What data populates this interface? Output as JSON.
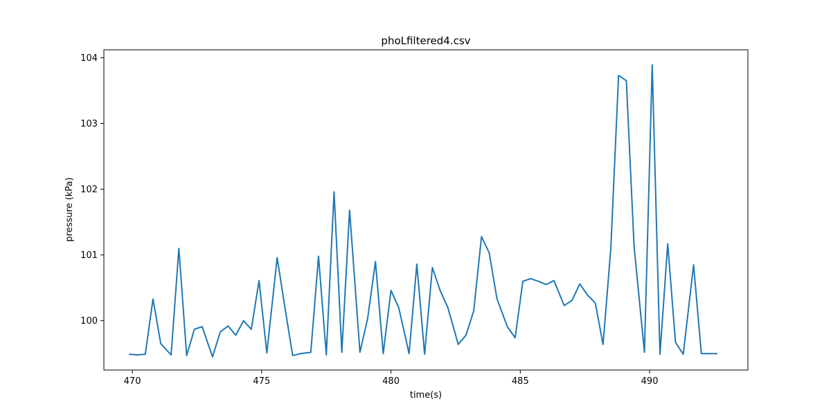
{
  "chart_data": {
    "type": "line",
    "title": "phoLfiltered4.csv",
    "xlabel": "time(s)",
    "ylabel": "pressure (kPa)",
    "xlim": [
      468.9,
      493.8
    ],
    "ylim": [
      99.25,
      104.12
    ],
    "xticks": [
      470,
      475,
      480,
      485,
      490
    ],
    "yticks": [
      100,
      101,
      102,
      103,
      104
    ],
    "grid": false,
    "line_color": "#1f77b4",
    "series": [
      {
        "x": [
          469.9,
          470.2,
          470.5,
          470.8,
          471.1,
          471.5,
          471.8,
          472.1,
          472.4,
          472.7,
          473.1,
          473.4,
          473.7,
          474.0,
          474.3,
          474.6,
          474.9,
          475.2,
          475.6,
          475.9,
          476.2,
          476.5,
          476.9,
          477.2,
          477.5,
          477.8,
          478.1,
          478.4,
          478.8,
          479.1,
          479.4,
          479.7,
          480.0,
          480.3,
          480.7,
          481.0,
          481.3,
          481.6,
          481.9,
          482.2,
          482.6,
          482.9,
          483.2,
          483.5,
          483.8,
          484.1,
          484.5,
          484.8,
          485.1,
          485.4,
          485.7,
          486.0,
          486.3,
          486.7,
          487.0,
          487.3,
          487.6,
          487.9,
          488.2,
          488.5,
          488.8,
          489.1,
          489.4,
          489.8,
          490.1,
          490.4,
          490.7,
          491.0,
          491.3,
          491.7,
          492.0,
          492.3,
          492.6
        ],
        "y": [
          99.49,
          99.48,
          99.49,
          100.33,
          99.65,
          99.48,
          101.1,
          99.47,
          99.87,
          99.91,
          99.45,
          99.83,
          99.92,
          99.78,
          100.0,
          99.87,
          100.61,
          99.51,
          100.96,
          100.2,
          99.47,
          99.5,
          99.52,
          100.98,
          99.48,
          101.96,
          99.52,
          101.68,
          99.52,
          100.04,
          100.9,
          99.5,
          100.46,
          100.2,
          99.5,
          100.86,
          99.49,
          100.81,
          100.46,
          100.2,
          99.64,
          99.78,
          100.15,
          101.28,
          101.03,
          100.33,
          99.91,
          99.74,
          100.6,
          100.64,
          100.6,
          100.55,
          100.61,
          100.23,
          100.31,
          100.56,
          100.39,
          100.27,
          99.64,
          101.1,
          103.73,
          103.65,
          101.13,
          99.52,
          103.89,
          99.49,
          101.17,
          99.67,
          99.49,
          100.85,
          99.5,
          99.5,
          99.5
        ]
      }
    ]
  }
}
